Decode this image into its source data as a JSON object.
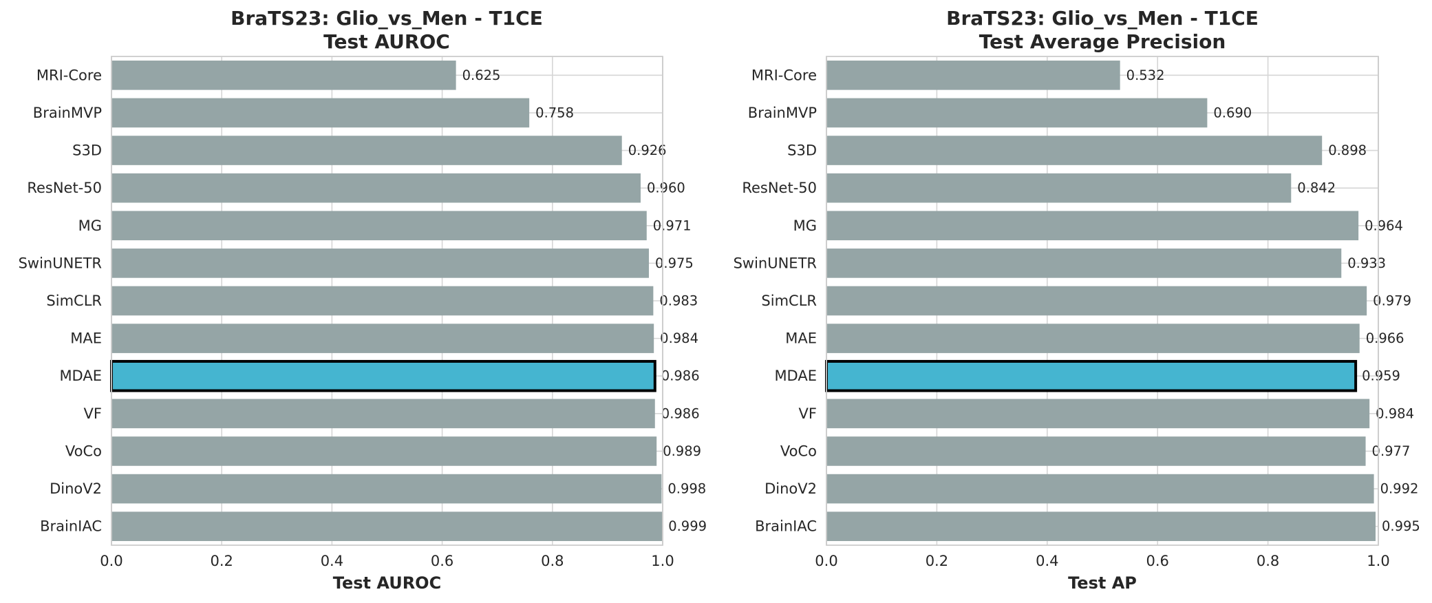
{
  "chart_data": [
    {
      "type": "bar",
      "orientation": "horizontal",
      "title": "BraTS23: Glio_vs_Men - T1CE",
      "subtitle": "Test AUROC",
      "xlabel": "Test AUROC",
      "ylabel": "",
      "xlim": [
        0.0,
        1.0
      ],
      "xticks": [
        "0.0",
        "0.2",
        "0.4",
        "0.6",
        "0.8",
        "1.0"
      ],
      "grid": true,
      "categories": [
        "MRI-Core",
        "BrainMVP",
        "S3D",
        "ResNet-50",
        "MG",
        "SwinUNETR",
        "SimCLR",
        "MAE",
        "MDAE",
        "VF",
        "VoCo",
        "DinoV2",
        "BrainIAC"
      ],
      "values": [
        0.625,
        0.758,
        0.926,
        0.96,
        0.971,
        0.975,
        0.983,
        0.984,
        0.986,
        0.986,
        0.989,
        0.998,
        0.999
      ],
      "value_labels": [
        "0.625",
        "0.758",
        "0.926",
        "0.960",
        "0.971",
        "0.975",
        "0.983",
        "0.984",
        "0.986",
        "0.986",
        "0.989",
        "0.998",
        "0.999"
      ],
      "highlight": "MDAE",
      "colors": {
        "bar": "#95a5a6",
        "highlight": "#45b5d0",
        "highlight_edge": "#000000"
      }
    },
    {
      "type": "bar",
      "orientation": "horizontal",
      "title": "BraTS23: Glio_vs_Men - T1CE",
      "subtitle": "Test Average Precision",
      "xlabel": "Test AP",
      "ylabel": "",
      "xlim": [
        0.0,
        1.0
      ],
      "xticks": [
        "0.0",
        "0.2",
        "0.4",
        "0.6",
        "0.8",
        "1.0"
      ],
      "grid": true,
      "categories": [
        "MRI-Core",
        "BrainMVP",
        "S3D",
        "ResNet-50",
        "MG",
        "SwinUNETR",
        "SimCLR",
        "MAE",
        "MDAE",
        "VF",
        "VoCo",
        "DinoV2",
        "BrainIAC"
      ],
      "values": [
        0.532,
        0.69,
        0.898,
        0.842,
        0.964,
        0.933,
        0.979,
        0.966,
        0.959,
        0.984,
        0.977,
        0.992,
        0.995
      ],
      "value_labels": [
        "0.532",
        "0.690",
        "0.898",
        "0.842",
        "0.964",
        "0.933",
        "0.979",
        "0.966",
        "0.959",
        "0.984",
        "0.977",
        "0.992",
        "0.995"
      ],
      "highlight": "MDAE",
      "colors": {
        "bar": "#95a5a6",
        "highlight": "#45b5d0",
        "highlight_edge": "#000000"
      }
    }
  ]
}
